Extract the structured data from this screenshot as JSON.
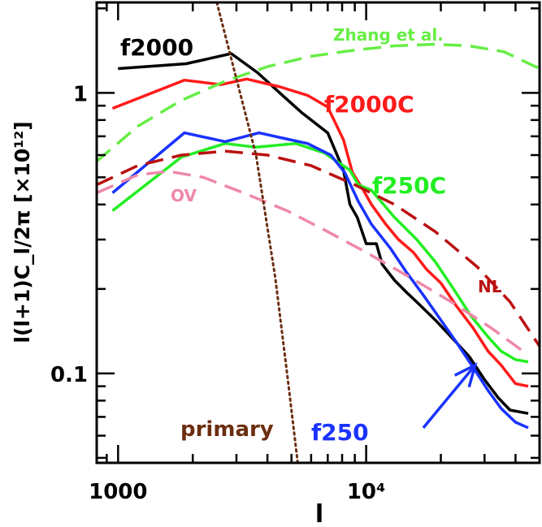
{
  "chart_data": {
    "type": "line",
    "title": "",
    "xlabel": "l",
    "ylabel": "l(l+1)C_l/2π [×10¹²]",
    "xscale": "log",
    "yscale": "log",
    "xlim": [
      820,
      50000
    ],
    "ylim": [
      0.048,
      2.1
    ],
    "x_ticks": [
      {
        "value": 1000,
        "label": "1000"
      },
      {
        "value": 10000,
        "label": "10⁴"
      }
    ],
    "y_ticks": [
      {
        "value": 0.1,
        "label": "0.1"
      },
      {
        "value": 1,
        "label": "1"
      }
    ],
    "series": [
      {
        "name": "f2000",
        "label": "f2000",
        "color": "#000000",
        "style": "solid",
        "label_color": "#000000",
        "points": [
          [
            1000,
            1.22
          ],
          [
            1880,
            1.27
          ],
          [
            2860,
            1.38
          ],
          [
            3650,
            1.18
          ],
          [
            4600,
            0.98
          ],
          [
            5500,
            0.85
          ],
          [
            7000,
            0.72
          ],
          [
            8100,
            0.53
          ],
          [
            8600,
            0.4
          ],
          [
            9200,
            0.36
          ],
          [
            10000,
            0.29
          ],
          [
            11000,
            0.29
          ],
          [
            11600,
            0.245
          ],
          [
            13000,
            0.215
          ],
          [
            14500,
            0.195
          ],
          [
            16500,
            0.175
          ],
          [
            19000,
            0.155
          ],
          [
            22000,
            0.135
          ],
          [
            26000,
            0.115
          ],
          [
            30000,
            0.095
          ],
          [
            34000,
            0.082
          ],
          [
            38000,
            0.074
          ],
          [
            45000,
            0.072
          ]
        ]
      },
      {
        "name": "f2000C",
        "label": "f2000C",
        "color": "#ff1a1a",
        "style": "solid",
        "label_color": "#ff1a1a",
        "points": [
          [
            950,
            0.88
          ],
          [
            1850,
            1.11
          ],
          [
            2600,
            1.07
          ],
          [
            3300,
            1.12
          ],
          [
            4500,
            1.05
          ],
          [
            5800,
            0.98
          ],
          [
            7000,
            0.89
          ],
          [
            8100,
            0.68
          ],
          [
            8800,
            0.52
          ],
          [
            9600,
            0.46
          ],
          [
            10500,
            0.4
          ],
          [
            12000,
            0.34
          ],
          [
            13500,
            0.3
          ],
          [
            15500,
            0.27
          ],
          [
            17500,
            0.235
          ],
          [
            20000,
            0.21
          ],
          [
            23000,
            0.175
          ],
          [
            27000,
            0.145
          ],
          [
            31000,
            0.12
          ],
          [
            35000,
            0.107
          ],
          [
            40000,
            0.092
          ],
          [
            45000,
            0.09
          ]
        ]
      },
      {
        "name": "f250C",
        "label": "f250C",
        "color": "#22ee22",
        "style": "solid",
        "label_color": "#22ee22",
        "points": [
          [
            950,
            0.38
          ],
          [
            1800,
            0.59
          ],
          [
            2700,
            0.66
          ],
          [
            3600,
            0.64
          ],
          [
            5200,
            0.66
          ],
          [
            6800,
            0.61
          ],
          [
            8600,
            0.53
          ],
          [
            9300,
            0.47
          ],
          [
            10500,
            0.45
          ],
          [
            13000,
            0.36
          ],
          [
            16000,
            0.3
          ],
          [
            19000,
            0.25
          ],
          [
            22500,
            0.2
          ],
          [
            26500,
            0.16
          ],
          [
            31000,
            0.135
          ],
          [
            35000,
            0.12
          ],
          [
            40000,
            0.112
          ],
          [
            45000,
            0.11
          ]
        ]
      },
      {
        "name": "f250",
        "label": "f250",
        "color": "#1a33ff",
        "style": "solid",
        "label_color": "#1a33ff",
        "points": [
          [
            950,
            0.44
          ],
          [
            1850,
            0.72
          ],
          [
            2700,
            0.67
          ],
          [
            3700,
            0.72
          ],
          [
            4600,
            0.69
          ],
          [
            5800,
            0.66
          ],
          [
            7200,
            0.6
          ],
          [
            8200,
            0.52
          ],
          [
            9300,
            0.41
          ],
          [
            10500,
            0.34
          ],
          [
            12500,
            0.28
          ],
          [
            14500,
            0.23
          ],
          [
            17000,
            0.19
          ],
          [
            20000,
            0.155
          ],
          [
            23000,
            0.13
          ],
          [
            27000,
            0.105
          ],
          [
            31000,
            0.087
          ],
          [
            35000,
            0.075
          ],
          [
            40000,
            0.067
          ],
          [
            45000,
            0.064
          ]
        ]
      },
      {
        "name": "Zhang et al.",
        "label": "Zhang et al.",
        "color": "#66ee44",
        "style": "dashed",
        "label_color": "#66ee44",
        "points": [
          [
            820,
            0.57
          ],
          [
            1200,
            0.76
          ],
          [
            1800,
            0.94
          ],
          [
            2700,
            1.1
          ],
          [
            4000,
            1.24
          ],
          [
            6000,
            1.35
          ],
          [
            9000,
            1.42
          ],
          [
            13000,
            1.47
          ],
          [
            19000,
            1.49
          ],
          [
            26000,
            1.47
          ],
          [
            36000,
            1.4
          ],
          [
            50000,
            1.22
          ]
        ]
      },
      {
        "name": "NL",
        "label": "NL",
        "color": "#bb1111",
        "style": "dashed",
        "label_color": "#bb1111",
        "points": [
          [
            820,
            0.47
          ],
          [
            1200,
            0.55
          ],
          [
            1800,
            0.6
          ],
          [
            2700,
            0.62
          ],
          [
            4000,
            0.6
          ],
          [
            6000,
            0.55
          ],
          [
            9000,
            0.47
          ],
          [
            13000,
            0.4
          ],
          [
            19000,
            0.32
          ],
          [
            28000,
            0.24
          ],
          [
            38000,
            0.18
          ],
          [
            50000,
            0.125
          ]
        ]
      },
      {
        "name": "OV",
        "label": "OV",
        "color": "#ee88aa",
        "style": "dashed",
        "label_color": "#ee88aa",
        "points": [
          [
            820,
            0.44
          ],
          [
            1200,
            0.51
          ],
          [
            1600,
            0.525
          ],
          [
            2200,
            0.5
          ],
          [
            3200,
            0.44
          ],
          [
            4800,
            0.38
          ],
          [
            7000,
            0.32
          ],
          [
            10000,
            0.27
          ],
          [
            15000,
            0.22
          ],
          [
            22000,
            0.18
          ],
          [
            32000,
            0.145
          ],
          [
            44000,
            0.118
          ]
        ]
      },
      {
        "name": "primary",
        "label": "primary",
        "color": "#6b2e10",
        "style": "dotted",
        "label_color": "#6b2e10",
        "points": [
          [
            2500,
            2.1
          ],
          [
            3600,
            0.6
          ],
          [
            4300,
            0.22
          ],
          [
            4800,
            0.1
          ],
          [
            5300,
            0.048
          ]
        ]
      }
    ],
    "annotations": [
      {
        "type": "arrow",
        "from": [
          17000,
          0.064
        ],
        "to": [
          27500,
          0.107
        ],
        "color": "#1a33ff",
        "label_ref": "f250"
      }
    ]
  }
}
